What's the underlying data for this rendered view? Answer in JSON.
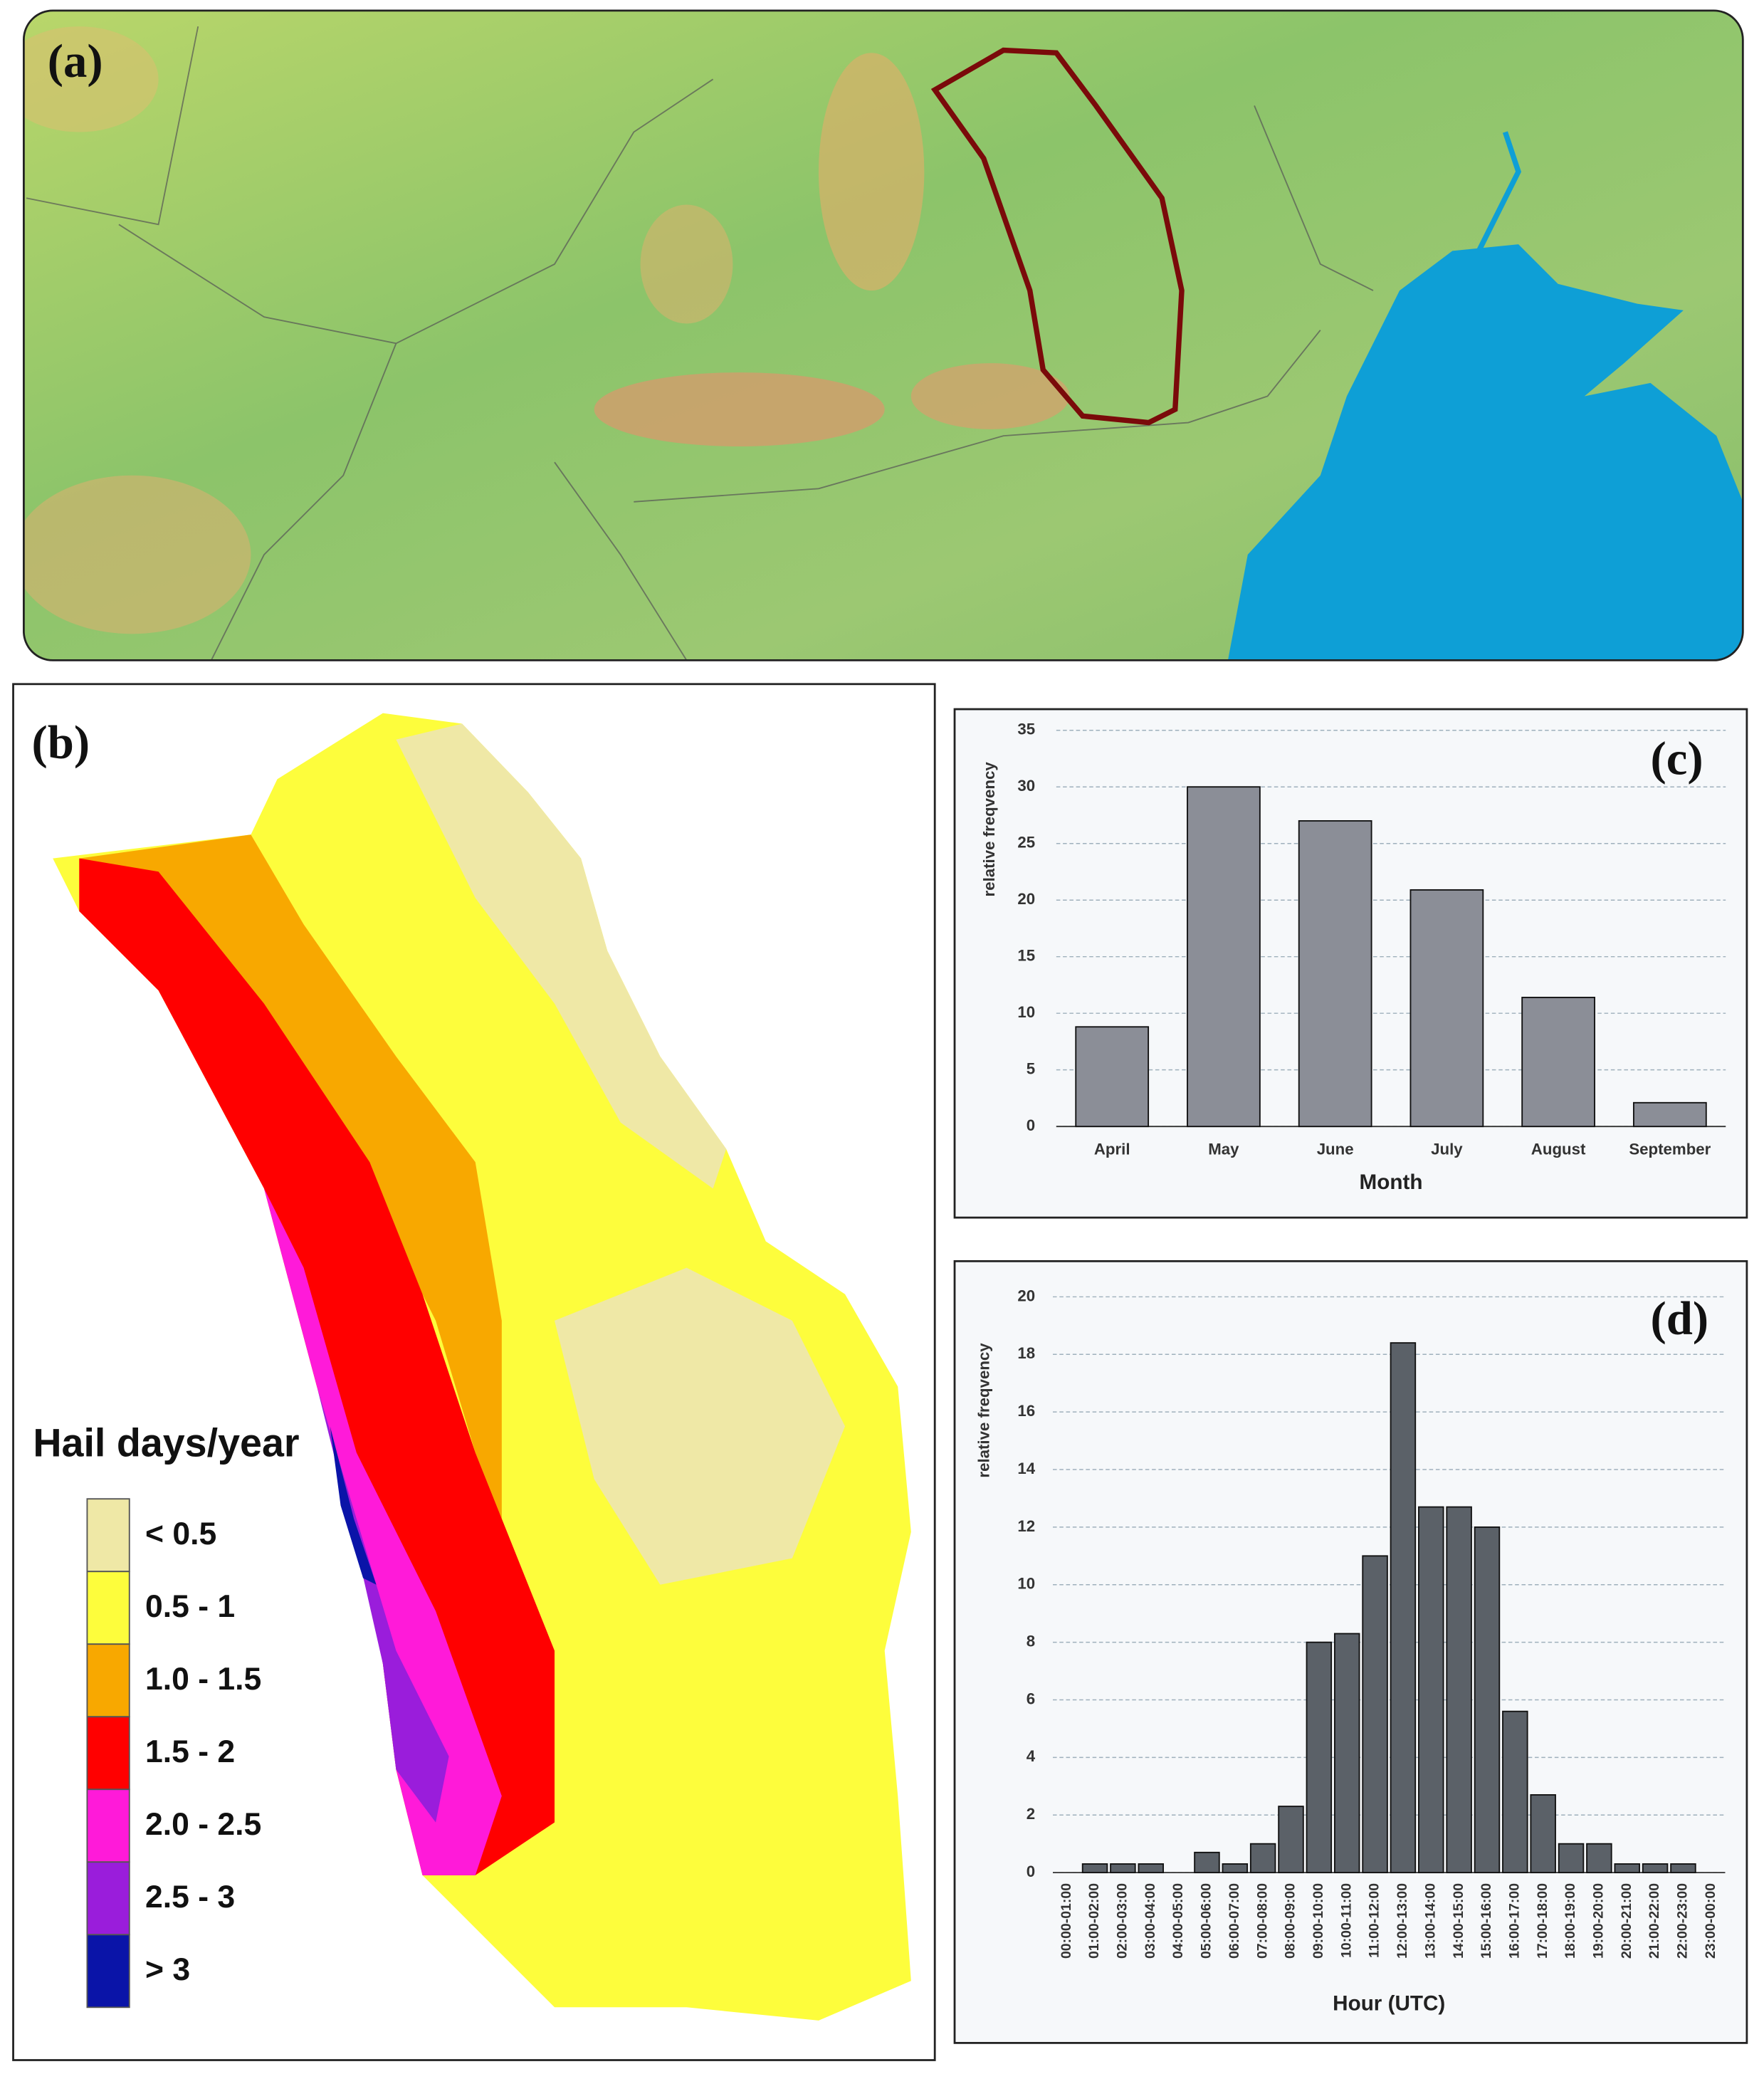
{
  "map_a": {
    "label": "(a)"
  },
  "map_b": {
    "label": "(b)",
    "legend": {
      "title": "Hail days/year",
      "items": [
        {
          "label": "< 0.5",
          "color": "#efe8a6"
        },
        {
          "label": "0.5 - 1",
          "color": "#fdfd3c"
        },
        {
          "label": "1.0 - 1.5",
          "color": "#f8a800"
        },
        {
          "label": "1.5 - 2",
          "color": "#ff0000"
        },
        {
          "label": "2.0 - 2.5",
          "color": "#ff1ad9"
        },
        {
          "label": "2.5 - 3",
          "color": "#9a1ddb"
        },
        {
          "label": "> 3",
          "color": "#0a14a8"
        }
      ]
    }
  },
  "chart_data": [
    {
      "type": "bar",
      "label": "(c)",
      "ylabel": "relative freqvency",
      "xlabel": "Month",
      "categories": [
        "April",
        "May",
        "June",
        "July",
        "August",
        "September"
      ],
      "values": [
        8.8,
        30,
        27,
        20.9,
        11.4,
        2.1
      ],
      "color": "#8b8e97",
      "ylim": [
        0,
        35
      ],
      "yticks": [
        0,
        5,
        10,
        15,
        20,
        25,
        30,
        35
      ],
      "grid": true
    },
    {
      "type": "bar",
      "label": "(d)",
      "ylabel": "relative freqvency",
      "xlabel": "Hour (UTC)",
      "categories": [
        "00:00-01:00",
        "01:00-02:00",
        "02:00-03:00",
        "03:00-04:00",
        "04:00-05:00",
        "05:00-06:00",
        "06:00-07:00",
        "07:00-08:00",
        "08:00-09:00",
        "09:00-10:00",
        "10:00-11:00",
        "11:00-12:00",
        "12:00-13:00",
        "13:00-14:00",
        "14:00-15:00",
        "15:00-16:00",
        "16:00-17:00",
        "17:00-18:00",
        "18:00-19:00",
        "19:00-20:00",
        "20:00-21:00",
        "21:00-22:00",
        "22:00-23:00",
        "23:00-00:00"
      ],
      "values": [
        0,
        0.3,
        0.3,
        0.3,
        0,
        0.7,
        0.3,
        1.0,
        2.3,
        8.0,
        8.3,
        11.0,
        18.4,
        12.7,
        12.7,
        12.0,
        5.6,
        2.7,
        1.0,
        1.0,
        0.3,
        0.3,
        0.3,
        0
      ],
      "color": "#5b6168",
      "ylim": [
        0,
        20
      ],
      "yticks": [
        0,
        2,
        4,
        6,
        8,
        10,
        12,
        14,
        16,
        18,
        20
      ],
      "grid": true
    }
  ]
}
